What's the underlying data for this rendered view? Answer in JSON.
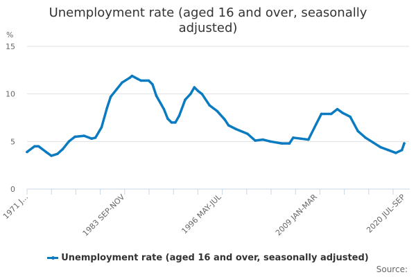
{
  "chart_data": {
    "type": "line",
    "title": "Unemployment rate (aged 16 and over, seasonally adjusted)",
    "ylabel": "%",
    "xlabel": "",
    "ylim": [
      0,
      15
    ],
    "yticks": [
      0,
      5,
      10,
      15
    ],
    "xlim": [
      1971.0,
      2020.6
    ],
    "xtick_labels": [
      {
        "label": "1971 J...",
        "x": 1971.0
      },
      {
        "label": "1983 SEP-NOV",
        "x": 1983.7
      },
      {
        "label": "1996 MAY-JUL",
        "x": 1996.4
      },
      {
        "label": "2009 JAN-MAR",
        "x": 2009.0
      },
      {
        "label": "2020 JUL-SEP",
        "x": 2020.6
      }
    ],
    "grid": true,
    "legend_position": "bottom",
    "color": "#0b7bc1",
    "series": [
      {
        "name": "Unemployment rate (aged 16 and over, seasonally adjusted)",
        "x": [
          1971.0,
          1972.0,
          1972.5,
          1973.5,
          1974.2,
          1975.0,
          1975.7,
          1976.5,
          1977.3,
          1978.5,
          1979.5,
          1980.0,
          1980.8,
          1981.5,
          1982.0,
          1982.8,
          1983.5,
          1984.5,
          1984.8,
          1985.5,
          1986.0,
          1987.0,
          1987.5,
          1988.0,
          1989.0,
          1989.5,
          1990.0,
          1990.5,
          1991.0,
          1991.8,
          1992.5,
          1993.0,
          1993.5,
          1994.0,
          1995.0,
          1996.0,
          1997.0,
          1997.5,
          1998.5,
          2000.0,
          2001.0,
          2002.0,
          2003.0,
          2004.5,
          2005.5,
          2006.0,
          2007.0,
          2008.0,
          2009.0,
          2009.7,
          2011.0,
          2011.8,
          2012.5,
          2013.5,
          2014.5,
          2015.5,
          2016.5,
          2017.5,
          2018.5,
          2019.5,
          2020.3,
          2020.6
        ],
        "values": [
          3.9,
          4.5,
          4.5,
          3.9,
          3.5,
          3.7,
          4.2,
          5.0,
          5.5,
          5.6,
          5.3,
          5.4,
          6.5,
          8.5,
          9.7,
          10.5,
          11.2,
          11.7,
          11.9,
          11.6,
          11.4,
          11.4,
          11.0,
          9.8,
          8.4,
          7.4,
          7.0,
          7.0,
          7.7,
          9.4,
          10.0,
          10.7,
          10.3,
          10.0,
          8.8,
          8.2,
          7.3,
          6.7,
          6.3,
          5.8,
          5.1,
          5.2,
          5.0,
          4.8,
          4.8,
          5.4,
          5.3,
          5.2,
          6.8,
          7.9,
          7.9,
          8.4,
          8.0,
          7.6,
          6.1,
          5.4,
          4.9,
          4.4,
          4.1,
          3.8,
          4.1,
          4.8
        ]
      }
    ]
  },
  "source_label": "Source:"
}
